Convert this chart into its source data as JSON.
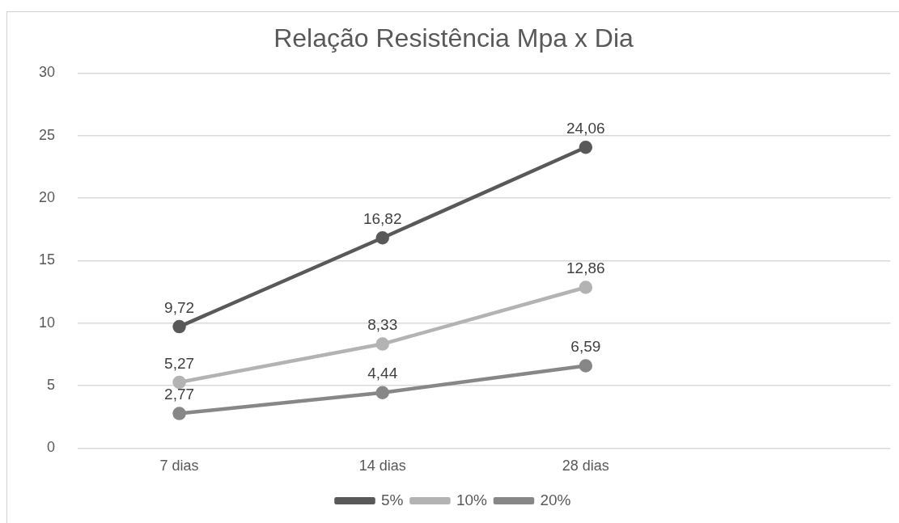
{
  "chart_data": {
    "type": "line",
    "title": "Relação Resistência Mpa x Dia",
    "categories": [
      "7 dias",
      "14 dias",
      "28 dias",
      null
    ],
    "series": [
      {
        "name": "5%",
        "color": "#595959",
        "values": [
          9.72,
          16.82,
          24.06,
          null
        ],
        "value_labels": [
          "9,72",
          "16,82",
          "24,06",
          null
        ]
      },
      {
        "name": "10%",
        "color": "#b3b3b3",
        "values": [
          5.27,
          8.33,
          12.86,
          null
        ],
        "value_labels": [
          "5,27",
          "8,33",
          "12,86",
          null
        ]
      },
      {
        "name": "20%",
        "color": "#878787",
        "values": [
          2.77,
          4.44,
          6.59,
          null
        ],
        "value_labels": [
          "2,77",
          "4,44",
          "6,59",
          null
        ]
      }
    ],
    "ylim": [
      0,
      30
    ],
    "yticks": [
      0,
      5,
      10,
      15,
      20,
      25,
      30
    ],
    "grid": "y",
    "legend": "bottom",
    "marker": "circle",
    "line_style": "solid"
  }
}
